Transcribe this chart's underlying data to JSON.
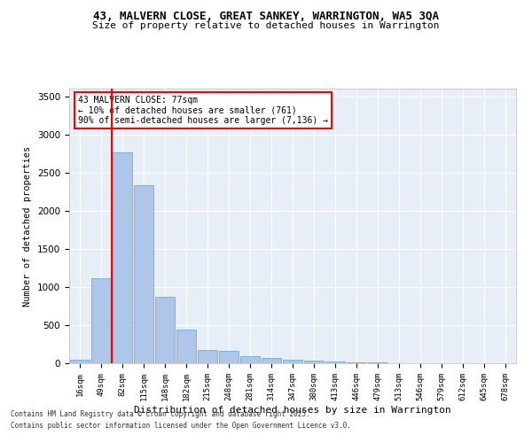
{
  "title_line1": "43, MALVERN CLOSE, GREAT SANKEY, WARRINGTON, WA5 3QA",
  "title_line2": "Size of property relative to detached houses in Warrington",
  "xlabel": "Distribution of detached houses by size in Warrington",
  "ylabel": "Number of detached properties",
  "categories": [
    "16sqm",
    "49sqm",
    "82sqm",
    "115sqm",
    "148sqm",
    "182sqm",
    "215sqm",
    "248sqm",
    "281sqm",
    "314sqm",
    "347sqm",
    "380sqm",
    "413sqm",
    "446sqm",
    "479sqm",
    "513sqm",
    "546sqm",
    "579sqm",
    "612sqm",
    "645sqm",
    "678sqm"
  ],
  "values": [
    50,
    1120,
    2760,
    2330,
    870,
    440,
    175,
    165,
    90,
    65,
    45,
    30,
    25,
    10,
    8,
    4,
    2,
    1,
    0,
    0,
    0
  ],
  "bar_color": "#aec6e8",
  "bar_edge_color": "#6baed6",
  "bg_color": "#e8eef8",
  "grid_color": "#ffffff",
  "redline_index": 2,
  "annotation_title": "43 MALVERN CLOSE: 77sqm",
  "annotation_line1": "← 10% of detached houses are smaller (761)",
  "annotation_line2": "90% of semi-detached houses are larger (7,136) →",
  "footnote1": "Contains HM Land Registry data © Crown copyright and database right 2025.",
  "footnote2": "Contains public sector information licensed under the Open Government Licence v3.0.",
  "ylim": [
    0,
    3600
  ],
  "yticks": [
    0,
    500,
    1000,
    1500,
    2000,
    2500,
    3000,
    3500
  ],
  "fig_width": 6.0,
  "fig_height": 5.0,
  "dpi": 100
}
